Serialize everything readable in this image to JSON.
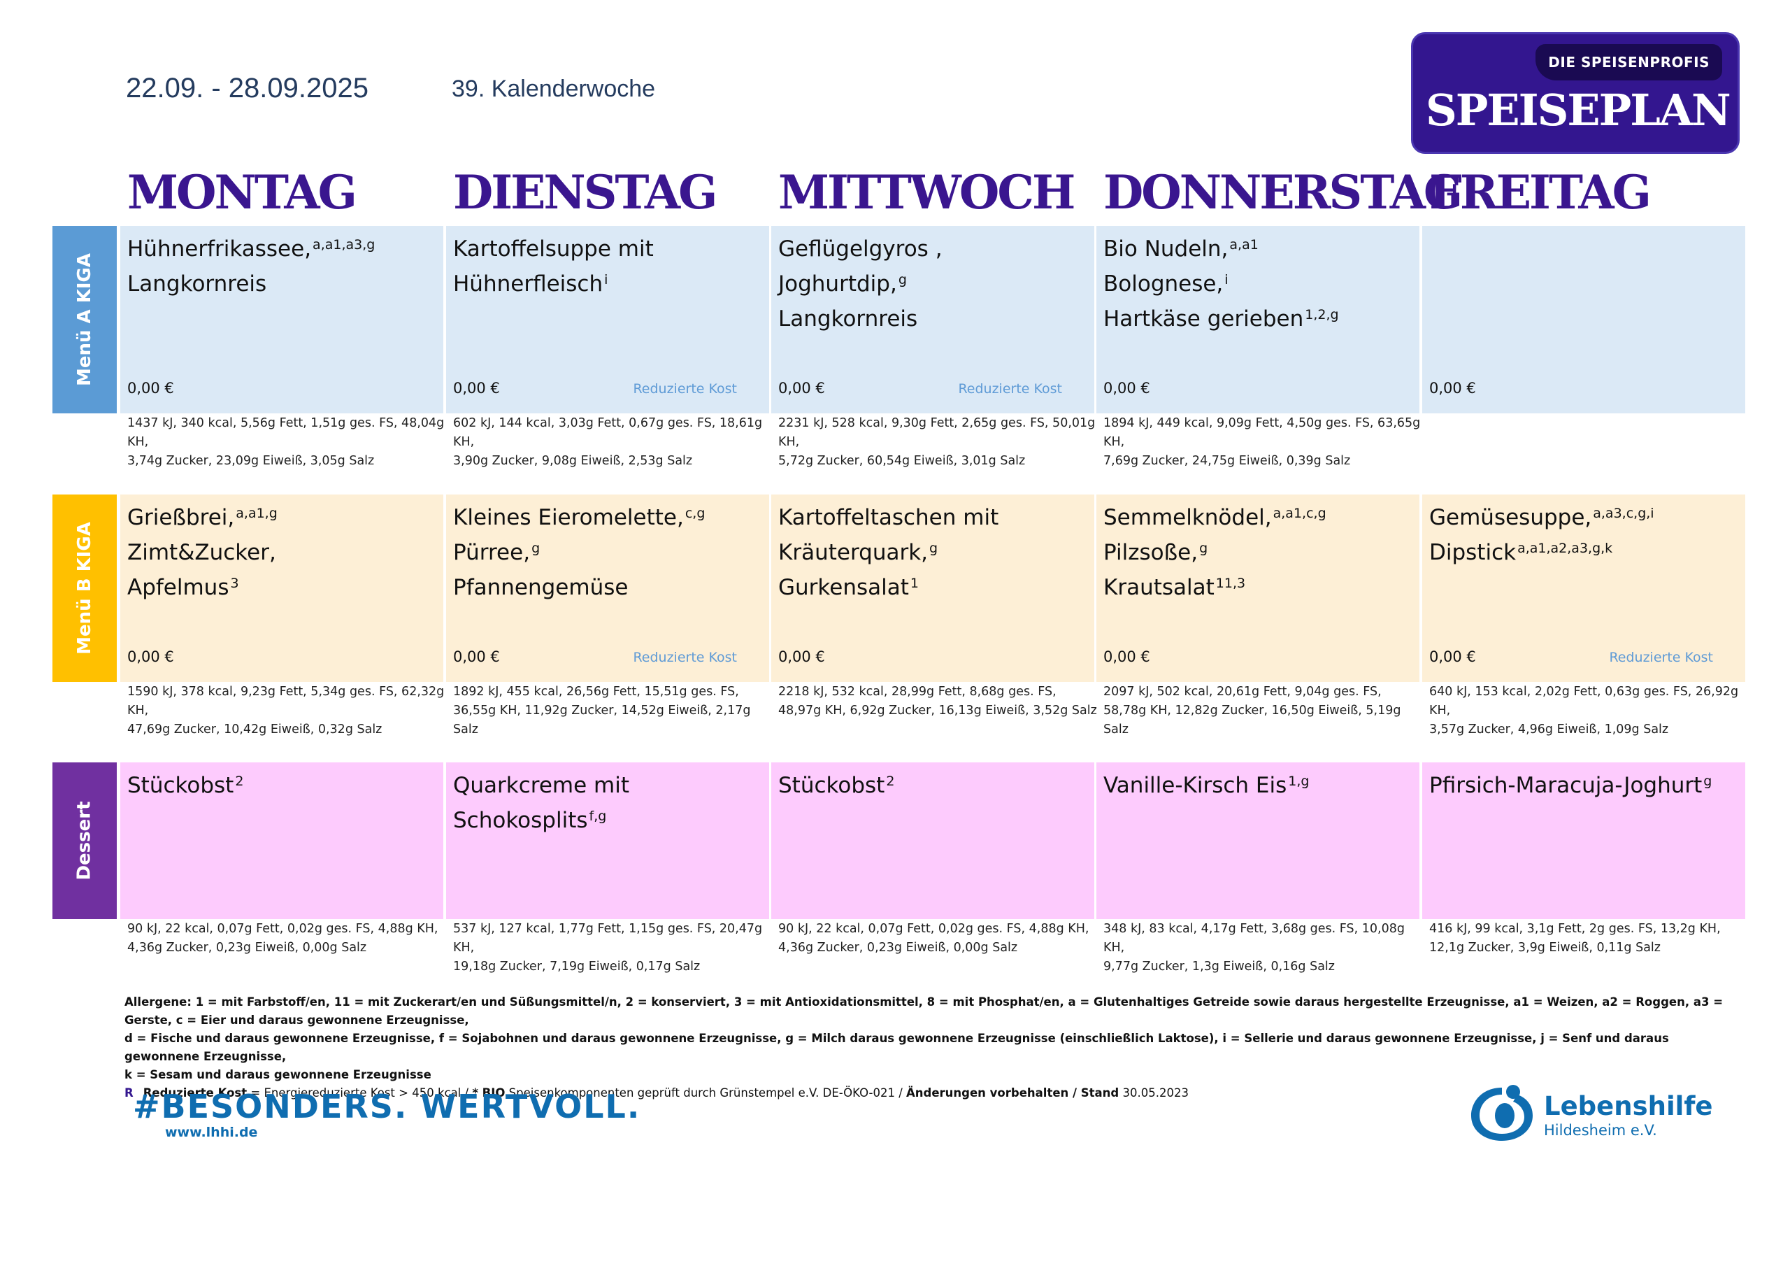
{
  "header": {
    "date_range": "22.09. - 28.09.2025",
    "calendar_week": "39. Kalenderwoche",
    "brand_tag": "DIE SPEISENPROFIS",
    "brand_title": "SPEISEPLAN"
  },
  "days": [
    "MONTAG",
    "DIENSTAG",
    "MITTWOCH",
    "DONNERSTAG",
    "FREITAG"
  ],
  "rows": {
    "a": {
      "label": "Menü A KIGA",
      "color": "#5b9bd5",
      "cell_color": "#dbe9f6"
    },
    "b": {
      "label": "Menü B KIGA",
      "color": "#ffc000",
      "cell_color": "#fdefd6"
    },
    "d": {
      "label": "Dessert",
      "color": "#7030a0",
      "cell_color": "#fdcbfd"
    }
  },
  "menu_a": [
    {
      "lines": [
        [
          "Hühnerfrikassee,",
          "a,a1,a3,g"
        ],
        [
          "Langkornreis",
          ""
        ]
      ],
      "price": "0,00 €",
      "tag": "",
      "nutrition": "1437 kJ, 340 kcal, 5,56g Fett, 1,51g ges. FS, 48,04g KH,\n3,74g Zucker, 23,09g Eiweiß, 3,05g Salz"
    },
    {
      "lines": [
        [
          "Kartoffelsuppe mit",
          ""
        ],
        [
          "Hühnerfleisch",
          "i"
        ]
      ],
      "price": "0,00 €",
      "tag": "Reduzierte Kost",
      "nutrition": "602 kJ, 144 kcal, 3,03g Fett, 0,67g ges. FS, 18,61g KH,\n3,90g Zucker, 9,08g Eiweiß, 2,53g Salz"
    },
    {
      "lines": [
        [
          "Geflügelgyros ,",
          ""
        ],
        [
          "Joghurtdip,",
          "g"
        ],
        [
          "Langkornreis",
          ""
        ]
      ],
      "price": "0,00 €",
      "tag": "Reduzierte Kost",
      "nutrition": "2231 kJ, 528 kcal, 9,30g Fett, 2,65g ges. FS, 50,01g KH,\n5,72g Zucker, 60,54g Eiweiß, 3,01g Salz"
    },
    {
      "lines": [
        [
          "Bio Nudeln,",
          "a,a1"
        ],
        [
          "Bolognese,",
          "i"
        ],
        [
          "Hartkäse gerieben",
          "1,2,g"
        ]
      ],
      "price": "0,00 €",
      "tag": "",
      "nutrition": "1894 kJ, 449 kcal, 9,09g Fett, 4,50g ges. FS, 63,65g KH,\n7,69g Zucker, 24,75g Eiweiß, 0,39g Salz"
    },
    {
      "lines": [],
      "price": "0,00 €",
      "tag": "",
      "nutrition": ""
    }
  ],
  "menu_b": [
    {
      "lines": [
        [
          "Grießbrei,",
          "a,a1,g"
        ],
        [
          "Zimt&Zucker,",
          ""
        ],
        [
          "Apfelmus",
          "3"
        ]
      ],
      "price": "0,00 €",
      "tag": "",
      "nutrition": "1590 kJ, 378 kcal, 9,23g Fett, 5,34g ges. FS, 62,32g KH,\n47,69g Zucker, 10,42g Eiweiß, 0,32g Salz"
    },
    {
      "lines": [
        [
          "Kleines Eieromelette,",
          "c,g"
        ],
        [
          "Pürree,",
          "g"
        ],
        [
          "Pfannengemüse",
          ""
        ]
      ],
      "price": "0,00 €",
      "tag": "Reduzierte Kost",
      "nutrition": "1892 kJ, 455 kcal, 26,56g Fett, 15,51g ges. FS,\n36,55g KH, 11,92g Zucker, 14,52g Eiweiß, 2,17g Salz"
    },
    {
      "lines": [
        [
          "Kartoffeltaschen mit",
          ""
        ],
        [
          "Kräuterquark,",
          "g"
        ],
        [
          "Gurkensalat",
          "1"
        ]
      ],
      "price": "0,00 €",
      "tag": "",
      "nutrition": "2218 kJ, 532 kcal, 28,99g Fett, 8,68g ges. FS,\n48,97g KH, 6,92g Zucker, 16,13g Eiweiß, 3,52g Salz"
    },
    {
      "lines": [
        [
          "Semmelknödel,",
          "a,a1,c,g"
        ],
        [
          "Pilzsoße,",
          "g"
        ],
        [
          "Krautsalat",
          "11,3"
        ]
      ],
      "price": "0,00 €",
      "tag": "",
      "nutrition": "2097 kJ, 502 kcal, 20,61g Fett, 9,04g ges. FS,\n58,78g KH, 12,82g Zucker, 16,50g Eiweiß, 5,19g Salz"
    },
    {
      "lines": [
        [
          "Gemüsesuppe,",
          "a,a3,c,g,i"
        ],
        [
          "Dipstick",
          "a,a1,a2,a3,g,k"
        ]
      ],
      "price": "0,00 €",
      "tag": "Reduzierte Kost",
      "nutrition": "640 kJ, 153 kcal, 2,02g Fett, 0,63g ges. FS, 26,92g KH,\n3,57g Zucker, 4,96g Eiweiß, 1,09g Salz"
    }
  ],
  "dessert": [
    {
      "lines": [
        [
          "Stückobst",
          "2"
        ]
      ],
      "nutrition": "90 kJ, 22 kcal, 0,07g Fett, 0,02g ges. FS, 4,88g KH,\n4,36g Zucker, 0,23g Eiweiß, 0,00g Salz"
    },
    {
      "lines": [
        [
          "Quarkcreme mit Schokosplits",
          "f,g"
        ]
      ],
      "nutrition": "537 kJ, 127 kcal, 1,77g Fett, 1,15g ges. FS, 20,47g KH,\n19,18g Zucker, 7,19g Eiweiß, 0,17g Salz"
    },
    {
      "lines": [
        [
          "Stückobst",
          "2"
        ]
      ],
      "nutrition": "90 kJ, 22 kcal, 0,07g Fett, 0,02g ges. FS, 4,88g KH,\n4,36g Zucker, 0,23g Eiweiß, 0,00g Salz"
    },
    {
      "lines": [
        [
          "Vanille-Kirsch Eis",
          "1,g"
        ]
      ],
      "nutrition": "348 kJ, 83 kcal, 4,17g Fett, 3,68g ges. FS, 10,08g KH,\n9,77g Zucker, 1,3g Eiweiß, 0,16g Salz"
    },
    {
      "lines": [
        [
          "Pfirsich-Maracuja-Joghurt",
          "g"
        ]
      ],
      "nutrition": "416 kJ, 99 kcal, 3,1g Fett, 2g ges. FS, 13,2g KH,\n12,1g Zucker, 3,9g Eiweiß, 0,11g Salz"
    }
  ],
  "allergens": {
    "line1": "Allergene: 1 = mit Farbstoff/en, 11 = mit Zuckerart/en und Süßungsmittel/n, 2 = konserviert, 3 = mit Antioxidationsmittel, 8 = mit Phosphat/en, a = Glutenhaltiges Getreide sowie daraus hergestellte Erzeugnisse, a1 = Weizen, a2 = Roggen, a3 = Gerste, c = Eier und daraus gewonnene Erzeugnisse,",
    "line2": "d = Fische und daraus gewonnene Erzeugnisse, f = Sojabohnen und daraus gewonnene Erzeugnisse, g = Milch daraus gewonnene Erzeugnisse (einschließlich Laktose), i = Sellerie und daraus gewonnene Erzeugnisse, j = Senf und daraus gewonnene Erzeugnisse,",
    "line3": "k = Sesam und daraus gewonnene Erzeugnisse",
    "r_mark": "R",
    "reduced_label": "Reduzierte Kost",
    "reduced_text": " = Energiereduzierte Kost > 450 kcal / ",
    "bio_label": "* BIO",
    "bio_text": " Speisenkomponenten geprüft durch Grünstempel e.V. DE-ÖKO-021 / ",
    "changes_label": "Änderungen vorbehalten / Stand",
    "date": " 30.05.2023"
  },
  "footer": {
    "slogan": "#BESONDERS. WERTVOLL.",
    "url": "www.lhhi.de",
    "org_name": "Lebenshilfe",
    "org_sub": "Hildesheim e.V."
  }
}
